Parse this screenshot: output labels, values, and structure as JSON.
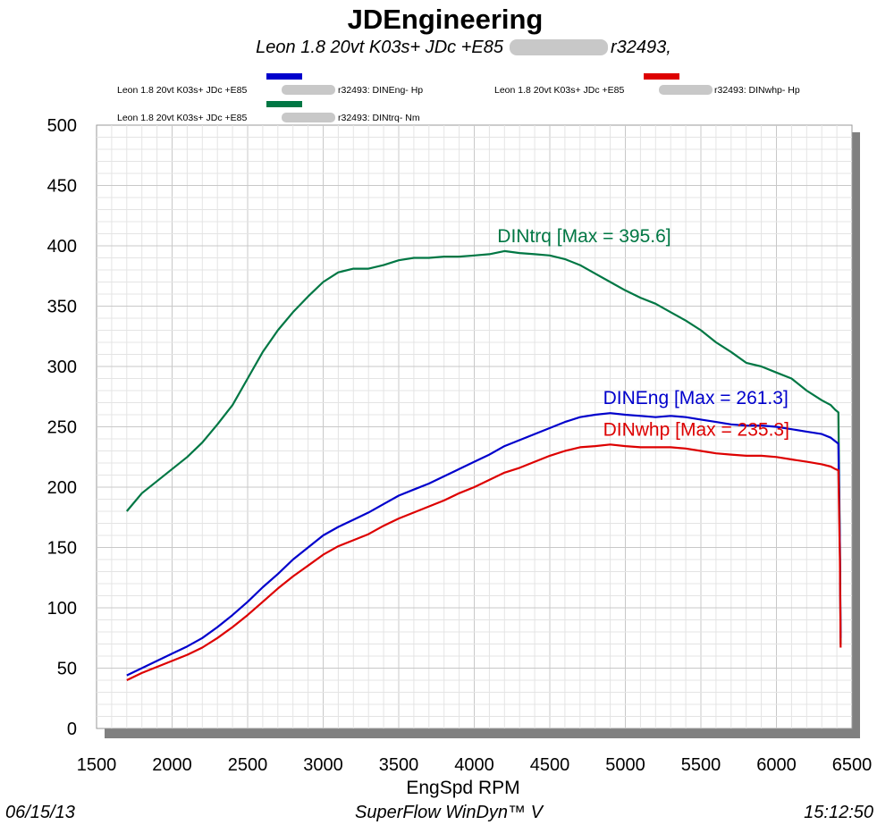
{
  "header": {
    "title": "JDEngineering",
    "subtitle_prefix": "Leon 1.8 20vt K03s+ JDc +E85",
    "subtitle_suffix": "r32493,"
  },
  "legend": [
    {
      "prefix": "Leon 1.8 20vt K03s+ JDc +E85",
      "suffix": "r32493: DINEng- Hp",
      "color": "#0000cc"
    },
    {
      "prefix": "Leon 1.8 20vt K03s+ JDc +E85",
      "suffix": "r32493: DINwhp-  Hp",
      "color": "#dd0000"
    },
    {
      "prefix": "Leon 1.8 20vt K03s+ JDc +E85",
      "suffix": "r32493: DINtrq- Nm",
      "color": "#007744"
    }
  ],
  "footer": {
    "date": "06/15/13",
    "software": "SuperFlow WinDyn™ V",
    "time": "15:12:50"
  },
  "chart_data": {
    "type": "line",
    "title": "JDEngineering",
    "xlabel": "EngSpd  RPM",
    "ylabel": "",
    "xlim": [
      1500,
      6500
    ],
    "ylim": [
      0,
      500
    ],
    "xticks": [
      1500,
      2000,
      2500,
      3000,
      3500,
      4000,
      4500,
      5000,
      5500,
      6000,
      6500
    ],
    "yticks": [
      0,
      50,
      100,
      150,
      200,
      250,
      300,
      350,
      400,
      450,
      500
    ],
    "grid": true,
    "series": [
      {
        "name": "DINtrq",
        "color": "#007744",
        "annotation": "DINtrq [Max = 395.6]",
        "x": [
          1700,
          1800,
          1900,
          2000,
          2100,
          2200,
          2300,
          2400,
          2500,
          2600,
          2700,
          2800,
          2900,
          3000,
          3100,
          3200,
          3300,
          3400,
          3500,
          3600,
          3700,
          3800,
          3900,
          4000,
          4100,
          4200,
          4300,
          4400,
          4500,
          4600,
          4700,
          4800,
          4900,
          5000,
          5100,
          5200,
          5300,
          5400,
          5500,
          5600,
          5700,
          5800,
          5900,
          6000,
          6100,
          6200,
          6300,
          6360,
          6390,
          6410,
          6420,
          6425
        ],
        "values": [
          180,
          195,
          205,
          215,
          225,
          237,
          252,
          268,
          290,
          312,
          330,
          345,
          358,
          370,
          378,
          381,
          381,
          384,
          388,
          390,
          390,
          391,
          391,
          392,
          393,
          395.6,
          394,
          393,
          392,
          389,
          384,
          377,
          370,
          363,
          357,
          352,
          345,
          338,
          330,
          320,
          312,
          303,
          300,
          295,
          290,
          280,
          272,
          268,
          264,
          262,
          150,
          70
        ]
      },
      {
        "name": "DINEng",
        "color": "#0000cc",
        "annotation": "DINEng [Max = 261.3]",
        "x": [
          1700,
          1800,
          1900,
          2000,
          2100,
          2200,
          2300,
          2400,
          2500,
          2600,
          2700,
          2800,
          2900,
          3000,
          3100,
          3200,
          3300,
          3400,
          3500,
          3600,
          3700,
          3800,
          3900,
          4000,
          4100,
          4200,
          4300,
          4400,
          4500,
          4600,
          4700,
          4800,
          4900,
          5000,
          5100,
          5200,
          5300,
          5400,
          5500,
          5600,
          5700,
          5800,
          5900,
          6000,
          6100,
          6200,
          6300,
          6360,
          6390,
          6410,
          6420,
          6425
        ],
        "values": [
          44,
          50,
          56,
          62,
          68,
          75,
          84,
          94,
          105,
          117,
          128,
          140,
          150,
          160,
          167,
          173,
          179,
          186,
          193,
          198,
          203,
          209,
          215,
          221,
          227,
          234,
          239,
          244,
          249,
          254,
          258,
          260,
          261.3,
          260,
          259,
          258,
          259,
          258,
          256,
          254,
          252,
          251,
          251,
          250,
          248,
          246,
          244,
          241,
          238,
          236,
          150,
          75
        ]
      },
      {
        "name": "DINwhp",
        "color": "#dd0000",
        "annotation": "DINwhp [Max = 235.3]",
        "x": [
          1700,
          1800,
          1900,
          2000,
          2100,
          2200,
          2300,
          2400,
          2500,
          2600,
          2700,
          2800,
          2900,
          3000,
          3100,
          3200,
          3300,
          3400,
          3500,
          3600,
          3700,
          3800,
          3900,
          4000,
          4100,
          4200,
          4300,
          4400,
          4500,
          4600,
          4700,
          4800,
          4900,
          5000,
          5100,
          5200,
          5300,
          5400,
          5500,
          5600,
          5700,
          5800,
          5900,
          6000,
          6100,
          6200,
          6300,
          6360,
          6390,
          6410,
          6420,
          6425
        ],
        "values": [
          40,
          46,
          51,
          56,
          61,
          67,
          75,
          84,
          94,
          105,
          116,
          126,
          135,
          144,
          151,
          156,
          161,
          168,
          174,
          179,
          184,
          189,
          195,
          200,
          206,
          212,
          216,
          221,
          226,
          230,
          233,
          234,
          235.3,
          234,
          233,
          233,
          233,
          232,
          230,
          228,
          227,
          226,
          226,
          225,
          223,
          221,
          219,
          217,
          215,
          214,
          140,
          67
        ]
      }
    ]
  }
}
